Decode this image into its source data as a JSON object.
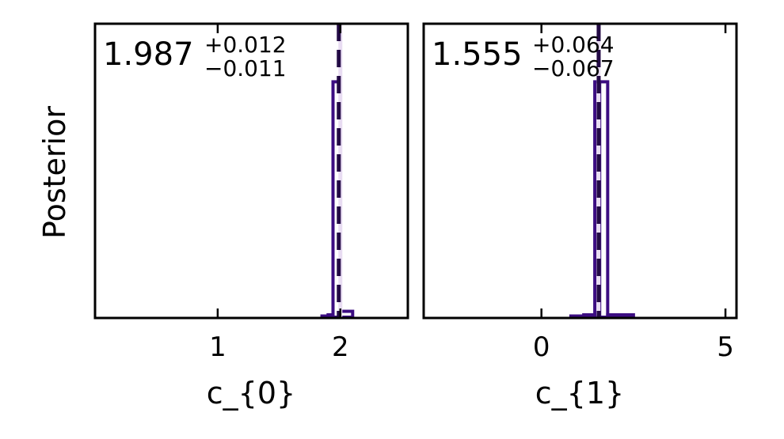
{
  "figure": {
    "ylabel": "Posterior"
  },
  "colors": {
    "hist": "#3c0d82",
    "median_line": "#230a45",
    "truth_line": "#e8dcf2",
    "axes": "#000000",
    "background": "#ffffff"
  },
  "chart_data": [
    {
      "type": "histogram",
      "xlabel": "c_{0}",
      "ylabel": "Posterior",
      "xlim": [
        0.0,
        2.55
      ],
      "xticks": [
        1,
        2
      ],
      "xtick_labels": [
        "1",
        "2"
      ],
      "median": 1.987,
      "upper_err": "+0.012",
      "lower_err": "−0.011",
      "median_label": "1.987",
      "truth": 2.0,
      "bin_edges": [
        0.0,
        1.85,
        1.9,
        1.94,
        2.0,
        2.1,
        2.55
      ],
      "counts": [
        0.0,
        0.005,
        0.01,
        1.0,
        0.025,
        0.0
      ],
      "ylim": [
        0,
        1.25
      ]
    },
    {
      "type": "histogram",
      "xlabel": "c_{1}",
      "ylabel": "",
      "xlim": [
        -3.2,
        5.3
      ],
      "xticks": [
        0,
        5
      ],
      "xtick_labels": [
        "0",
        "5"
      ],
      "median": 1.555,
      "upper_err": "+0.064",
      "lower_err": "−0.067",
      "median_label": "1.555",
      "truth": 1.55,
      "bin_edges": [
        -3.2,
        0.8,
        1.15,
        1.45,
        1.58,
        1.8,
        2.5,
        5.3
      ],
      "counts": [
        0.0,
        0.005,
        0.01,
        1.0,
        1.0,
        0.01,
        0.0
      ],
      "ylim": [
        0,
        1.25
      ]
    }
  ]
}
